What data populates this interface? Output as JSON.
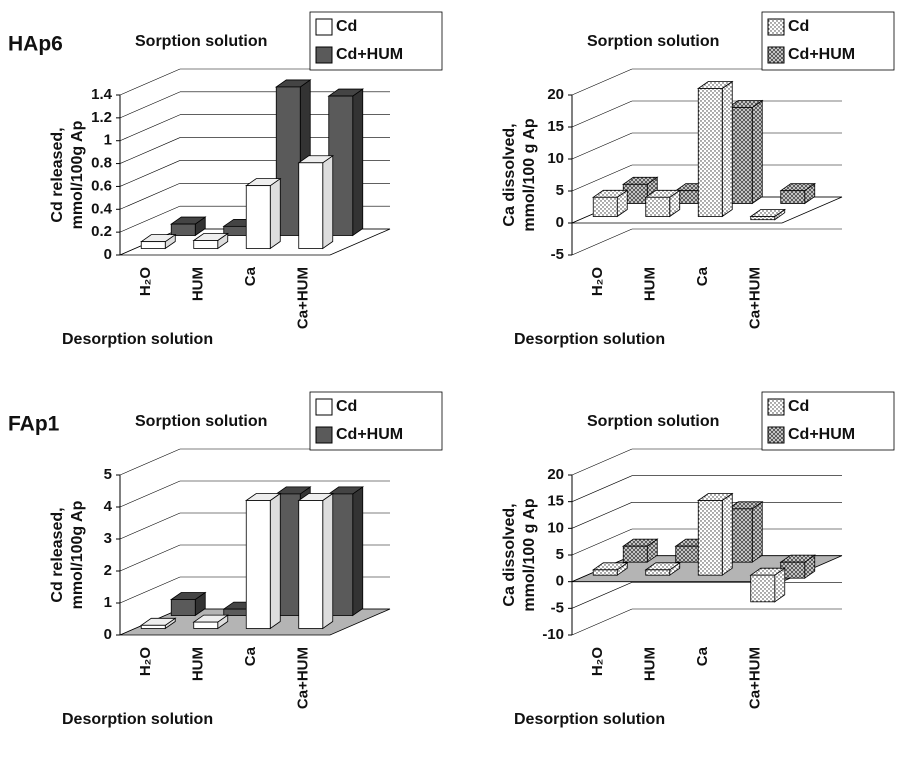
{
  "chart_data": [
    {
      "type": "bar3d",
      "panel_label": "HAp6",
      "legend_title": "Sorption solution",
      "ylabel": [
        "Cd released,",
        "mmol/100g Ap"
      ],
      "xlabel": "Desorption solution",
      "categories": [
        "H₂O",
        "HUM",
        "Ca",
        "Ca+HUM"
      ],
      "series": [
        {
          "name": "Cd",
          "color": "#ffffff",
          "values": [
            0.06,
            0.07,
            0.55,
            0.75
          ]
        },
        {
          "name": "Cd+HUM",
          "color": "#5a5a5a",
          "values": [
            0.1,
            0.08,
            1.3,
            1.22
          ]
        }
      ],
      "ylim": [
        0,
        1.4
      ],
      "yticks": [
        0,
        0.2,
        0.4,
        0.6,
        0.8,
        1,
        1.2,
        1.4
      ],
      "floor_color": "#ffffff"
    },
    {
      "type": "bar3d",
      "legend_title": "Sorption solution",
      "ylabel": [
        "Ca dissolved,",
        "mmol/100 g Ap"
      ],
      "xlabel": "Desorption solution",
      "categories": [
        "H₂O",
        "HUM",
        "Ca",
        "Ca+HUM"
      ],
      "series": [
        {
          "name": "Cd",
          "color": "#ffffff",
          "pattern": "dots",
          "values": [
            3,
            3,
            20,
            -0.5
          ]
        },
        {
          "name": "Cd+HUM",
          "color": "#ffffff",
          "pattern": "cross",
          "values": [
            3,
            2,
            15,
            2
          ]
        }
      ],
      "ylim": [
        -5,
        20
      ],
      "yticks": [
        -5,
        0,
        5,
        10,
        15,
        20
      ],
      "floor_color": "#ffffff"
    },
    {
      "type": "bar3d",
      "panel_label": "FAp1",
      "legend_title": "Sorption solution",
      "ylabel": [
        "Cd released,",
        "mmol/100g Ap"
      ],
      "xlabel": "Desorption solution",
      "categories": [
        "H₂O",
        "HUM",
        "Ca",
        "Ca+HUM"
      ],
      "series": [
        {
          "name": "Cd",
          "color": "#ffffff",
          "values": [
            0.1,
            0.2,
            4,
            4
          ]
        },
        {
          "name": "Cd+HUM",
          "color": "#5a5a5a",
          "values": [
            0.5,
            0.2,
            3.8,
            3.8
          ]
        }
      ],
      "ylim": [
        0,
        5
      ],
      "yticks": [
        0,
        1,
        2,
        3,
        4,
        5
      ],
      "floor_color": "#b4b4b4"
    },
    {
      "type": "bar3d",
      "legend_title": "Sorption solution",
      "ylabel": [
        "Ca dissolved,",
        "mmol/100 g Ap"
      ],
      "xlabel": "Desorption solution",
      "categories": [
        "H₂O",
        "HUM",
        "Ca",
        "Ca+HUM"
      ],
      "series": [
        {
          "name": "Cd",
          "color": "#ffffff",
          "pattern": "dots",
          "values": [
            1,
            1,
            14,
            -5
          ]
        },
        {
          "name": "Cd+HUM",
          "color": "#ffffff",
          "pattern": "cross",
          "values": [
            3,
            3,
            10,
            -3
          ]
        }
      ],
      "ylim": [
        -10,
        20
      ],
      "yticks": [
        -10,
        -5,
        0,
        5,
        10,
        15,
        20
      ],
      "floor_color": "#b4b4b4"
    }
  ]
}
